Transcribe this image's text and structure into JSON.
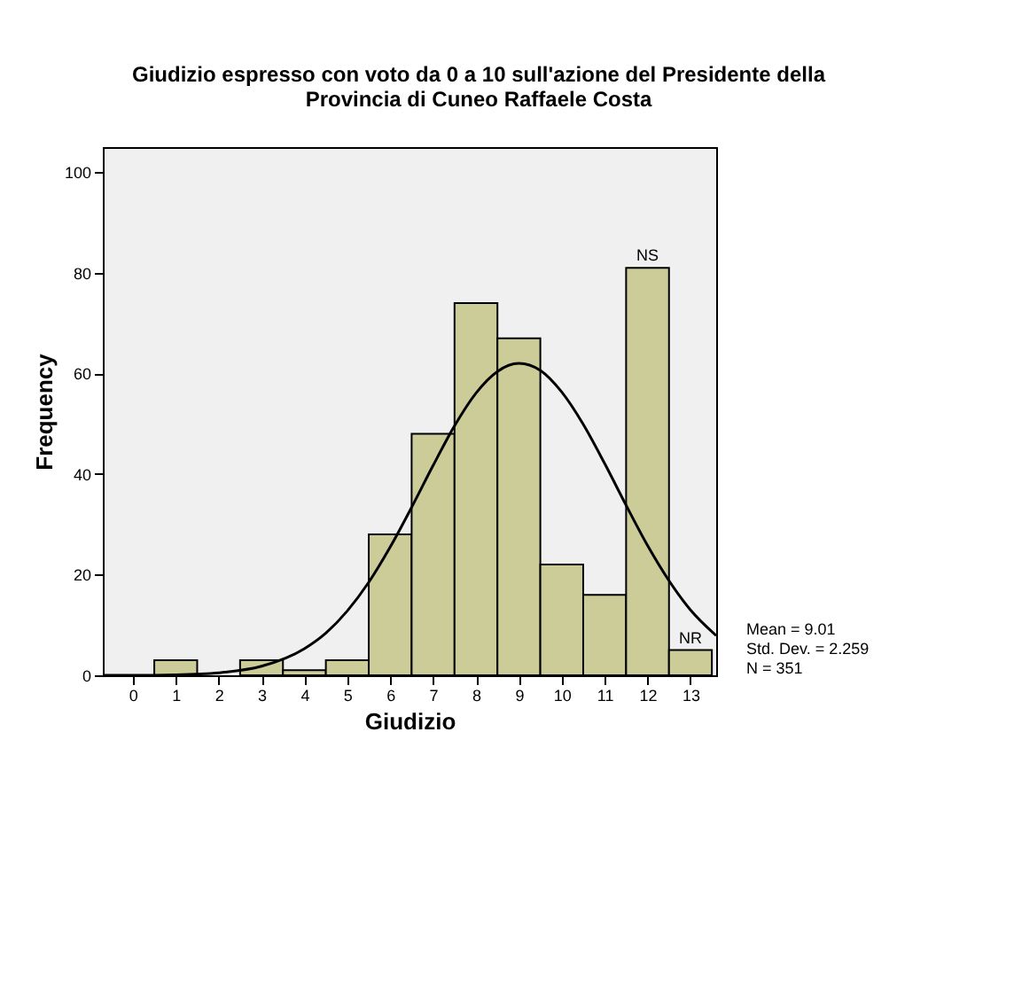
{
  "chart_data": {
    "type": "histogram",
    "title": "Giudizio espresso con voto da 0 a 10 sull'azione del Presidente della Provincia di Cuneo Raffaele Costa",
    "xlabel": "Giudizio",
    "ylabel": "Frequency",
    "bins": [
      -0.5,
      0.5,
      1.5,
      2.5,
      3.5,
      4.5,
      5.5,
      6.5,
      7.5,
      8.5,
      9.5,
      10.5,
      11.5,
      12.5,
      13.5
    ],
    "series": [
      {
        "color": "#cccc99",
        "values": [
          0,
          3,
          0,
          3,
          1,
          3,
          28,
          48,
          74,
          67,
          22,
          16,
          81,
          5
        ]
      },
      {
        "type": "line",
        "color": "#000000",
        "x": [
          -0.7,
          0,
          1,
          2,
          3,
          4,
          4.5,
          5,
          5.5,
          6,
          6.5,
          7,
          7.5,
          8,
          8.5,
          9,
          9.5,
          10,
          10.5,
          11,
          11.5,
          12,
          12.5,
          13,
          13.6
        ],
        "values": [
          0,
          0,
          0.1,
          0.5,
          1.8,
          5.3,
          8.4,
          12.8,
          18.5,
          25.5,
          33.4,
          41.7,
          49.6,
          56.1,
          60.4,
          62,
          60.6,
          56.3,
          49.9,
          42.1,
          33.8,
          25.8,
          18.8,
          13.0,
          7.9
        ]
      }
    ],
    "xlim": [
      -0.7,
      13.6
    ],
    "xticks": [
      0,
      1,
      2,
      3,
      4,
      5,
      6,
      7,
      8,
      9,
      10,
      11,
      12,
      13
    ],
    "ylim": [
      0,
      105
    ],
    "yticks": [
      0,
      20,
      40,
      60,
      80,
      100
    ],
    "grid": false,
    "annotations": [
      {
        "text": "NS",
        "x": 12,
        "y": 81
      },
      {
        "text": "NR",
        "x": 13,
        "y": 5
      },
      "Mean = 9.01",
      "Std. Dev. = 2.259",
      "N = 351"
    ]
  }
}
